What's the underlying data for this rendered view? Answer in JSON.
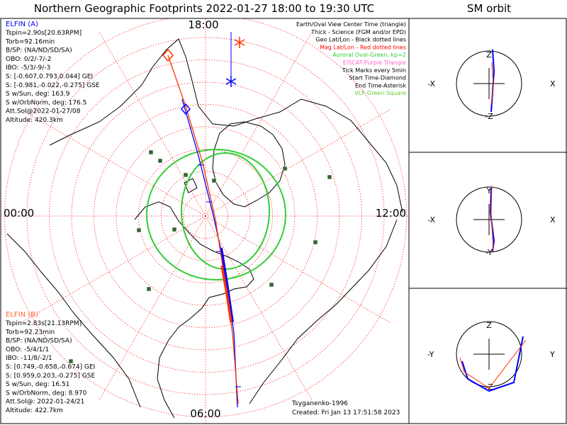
{
  "header": {
    "main_title": "Northern Geographic Footprints 2022-01-27 18:00 to 19:30 UTC",
    "orbit_title": "SM orbit"
  },
  "hour_labels": {
    "top": "18:00",
    "left": "00:00",
    "right": "12:00",
    "bottom": "06:00"
  },
  "elfin_a": {
    "title": "ELFIN (A)",
    "lines": [
      "Tspin=2.90s[20.63RPM]",
      "Torb=92.16min",
      "B/SP: (NA/ND/SD/SA)",
      "OBO: 0/2/-7/-2",
      "IBO: -5/3/-9/-3",
      "S: [-0.607,0.793,0.044] GEI",
      "S: [-0.981,-0.022,-0.275] GSE",
      "S w/Sun, deg: 163.9",
      "S w/OrbNorm, deg: 176.5",
      "Att.Sol@2022-01-27/08",
      "Altitude: 420.3km"
    ]
  },
  "elfin_b": {
    "title": "ELFIN (B)",
    "lines": [
      "Tspin=2.83s[21.13RPM]",
      "Torb=92.23min",
      "B/SP: (NA/ND/SD/SA)",
      "OBO: -5/4/1/1",
      "IBO: -11/8/-2/1",
      "S: [0.749,-0.658,-0.674] GEI",
      "S: [0.959,0.203,-0.275] GSE",
      "S w/Sun, deg: 16.51",
      "S w/OrbNorm, deg: 8.970",
      "Att.Sol@: 2022-01-24/21",
      "Altitude: 422.7km"
    ]
  },
  "legend": [
    {
      "text": "Earth/Oval View Center Time (triangle)",
      "color": "#000000"
    },
    {
      "text": "Thick - Science (FGM and/or EPD)",
      "color": "#000000"
    },
    {
      "text": "Geo Lat/Lon - Black dotted lines",
      "color": "#000000"
    },
    {
      "text": "Mag Lat/Lon - Red dotted lines",
      "color": "#ff0000"
    },
    {
      "text": "Auroral Oval-Green, kp=2",
      "color": "#33cc33"
    },
    {
      "text": "EISCAT-Purple Triangle",
      "color": "#ff66cc"
    },
    {
      "text": "Tick Marks every 5min",
      "color": "#000000"
    },
    {
      "text": "Start Time-Diamond",
      "color": "#000000"
    },
    {
      "text": "End Time-Asterisk",
      "color": "#000000"
    },
    {
      "text": "VLF-Green Square",
      "color": "#66cc33"
    }
  ],
  "credits": {
    "model": "Tsyganenko-1996",
    "created": "Created: Fri Jan 13 17:51:58 2023"
  },
  "orbit_panels": [
    {
      "top": "Z",
      "bottom": "-Z",
      "left": "-X",
      "right": "X"
    },
    {
      "top": "Y",
      "bottom": "-Y",
      "left": "-X",
      "right": "X"
    },
    {
      "top": "Z",
      "bottom": "-Z",
      "left": "-Y",
      "right": "Y"
    }
  ],
  "colors": {
    "elfin_a": "#0000ff",
    "elfin_b": "#ff3300",
    "mag_grid": "#ff0000",
    "auroral_oval": "#33cc33",
    "vlf": "#336633",
    "coast": "#000000"
  },
  "chart_data": [
    {
      "type": "map",
      "title": "Northern Geographic Footprints 2022-01-27 18:00 to 19:30 UTC",
      "projection": "north polar, magnetic local time",
      "series": [
        {
          "name": "ELFIN (A)",
          "markers": {
            "start": "diamond",
            "end": "asterisk"
          }
        },
        {
          "name": "ELFIN (B)",
          "markers": {
            "start": "diamond",
            "end": "asterisk"
          }
        }
      ]
    },
    {
      "type": "orbit",
      "title": "SM orbit"
    }
  ]
}
